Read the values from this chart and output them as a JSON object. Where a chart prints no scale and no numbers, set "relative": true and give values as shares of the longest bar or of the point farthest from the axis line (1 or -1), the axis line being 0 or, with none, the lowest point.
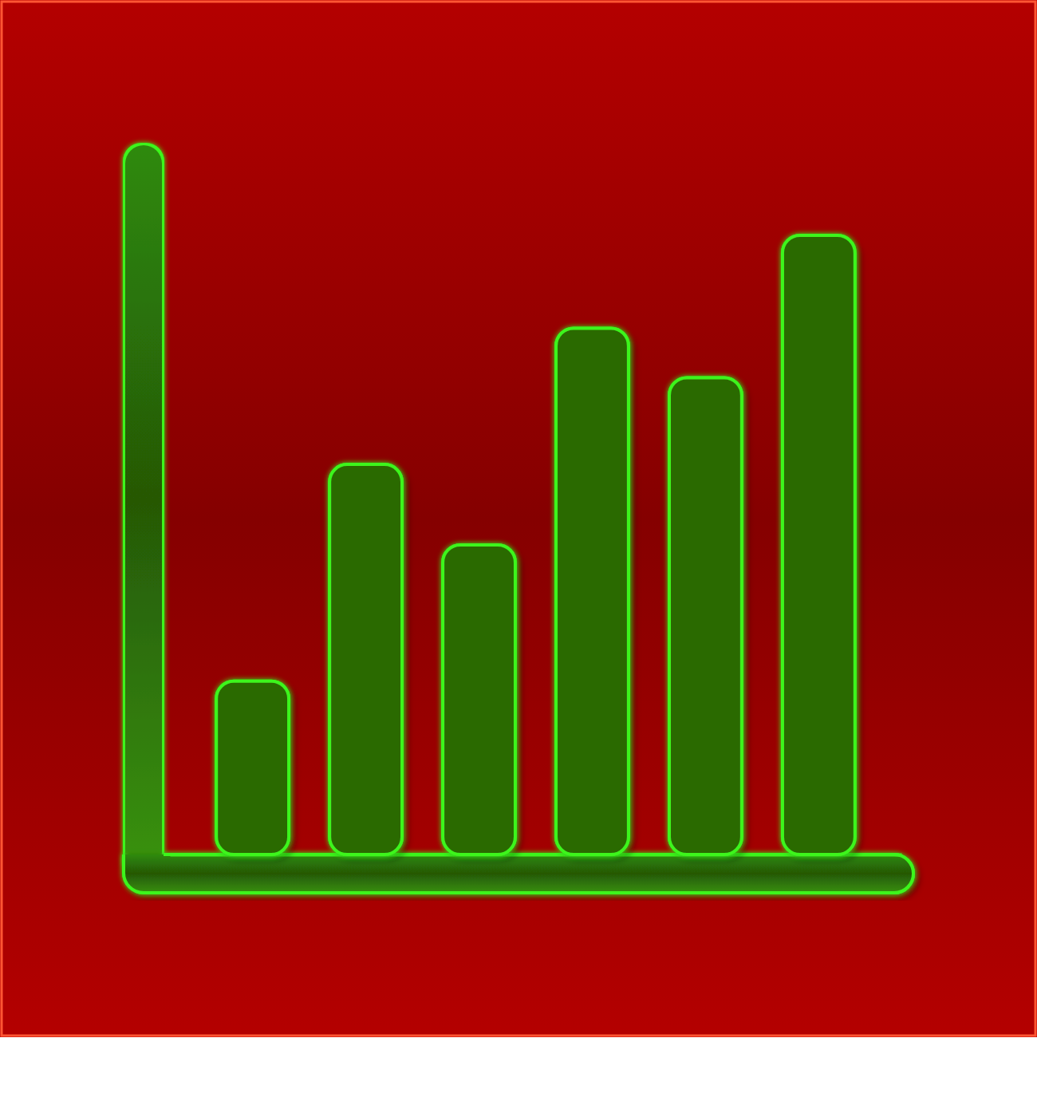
{
  "chart_data": {
    "type": "bar",
    "categories": [
      null,
      null,
      null,
      null,
      null,
      null
    ],
    "values": [
      0.28,
      0.63,
      0.5,
      0.85,
      0.77,
      1
    ],
    "relative": true,
    "color": "#2c6a06"
  }
}
